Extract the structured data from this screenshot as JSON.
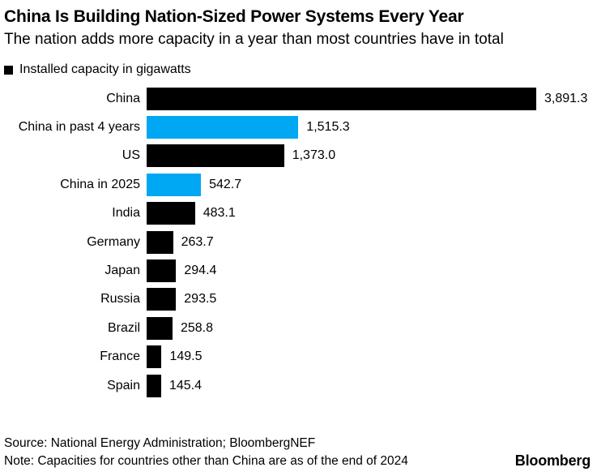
{
  "chart_data": {
    "type": "bar",
    "orientation": "horizontal",
    "title": "China Is Building Nation-Sized Power Systems Every Year",
    "subtitle": "The nation adds more capacity in a year than most countries have in total",
    "legend_label": "Installed capacity in gigawatts",
    "categories": [
      "China",
      "China in past 4 years",
      "US",
      "China in 2025",
      "India",
      "Germany",
      "Japan",
      "Russia",
      "Brazil",
      "France",
      "Spain"
    ],
    "values": [
      3891.3,
      1515.3,
      1373.0,
      542.7,
      483.1,
      263.7,
      294.4,
      293.5,
      258.8,
      149.5,
      145.4
    ],
    "value_labels": [
      "3,891.3",
      "1,515.3",
      "1,373.0",
      "542.7",
      "483.1",
      "263.7",
      "294.4",
      "293.5",
      "258.8",
      "149.5",
      "145.4"
    ],
    "bar_colors": [
      "black",
      "blue",
      "black",
      "blue",
      "black",
      "black",
      "black",
      "black",
      "black",
      "black",
      "black"
    ],
    "xlim": [
      0,
      3891.3
    ],
    "grid": false,
    "legend_position": "top-left"
  },
  "palette": {
    "black": "#000000",
    "blue": "#00a7f2"
  },
  "footer": {
    "source": "Source: National Energy Administration; BloombergNEF",
    "note": "Note: Capacities for countries other than China are as of the end of 2024",
    "logo": "Bloomberg"
  }
}
